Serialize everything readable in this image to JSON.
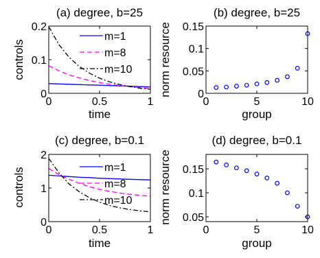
{
  "colors": {
    "m1": "#0000ff",
    "m8": "#ff00ff",
    "m10": "#000000",
    "markers": "#0000ff"
  },
  "chart_data": [
    {
      "id": "a",
      "type": "line",
      "title": "(a) degree, b=25",
      "xlabel": "time",
      "ylabel": "controls",
      "xlim": [
        0,
        1
      ],
      "ylim": [
        0,
        0.2
      ],
      "xticks": [
        0,
        0.5,
        1
      ],
      "xticklabels": [
        "0",
        "0.5",
        "1"
      ],
      "yticks": [
        0,
        0.1,
        0.2
      ],
      "yticklabels": [
        "0",
        "0.1",
        "0.2"
      ],
      "legend_position": "top-right",
      "x": [
        0,
        0.1,
        0.2,
        0.3,
        0.4,
        0.5,
        0.6,
        0.7,
        0.8,
        0.9,
        1.0
      ],
      "series": [
        {
          "name": "m=1",
          "style": "solid",
          "values": [
            0.029,
            0.028,
            0.027,
            0.026,
            0.025,
            0.024,
            0.023,
            0.022,
            0.021,
            0.02,
            0.019
          ]
        },
        {
          "name": "m=8",
          "style": "dashed",
          "values": [
            0.082,
            0.067,
            0.055,
            0.046,
            0.038,
            0.032,
            0.027,
            0.023,
            0.02,
            0.017,
            0.015
          ]
        },
        {
          "name": "m=10",
          "style": "dashdot",
          "values": [
            0.198,
            0.145,
            0.107,
            0.08,
            0.06,
            0.045,
            0.034,
            0.026,
            0.02,
            0.015,
            0.012
          ]
        }
      ]
    },
    {
      "id": "b",
      "type": "scatter",
      "title": "(b) degree, b=25",
      "xlabel": "group",
      "ylabel": "norm resource",
      "xlim": [
        0,
        10
      ],
      "ylim": [
        0,
        0.15
      ],
      "xticks": [
        0,
        5,
        10
      ],
      "xticklabels": [
        "0",
        "5",
        "10"
      ],
      "yticks": [
        0,
        0.05,
        0.1,
        0.15
      ],
      "yticklabels": [
        "0",
        "0.05",
        "0.1",
        "0.15"
      ],
      "x": [
        1,
        2,
        3,
        4,
        5,
        6,
        7,
        8,
        9,
        10
      ],
      "values": [
        0.013,
        0.014,
        0.016,
        0.018,
        0.021,
        0.024,
        0.029,
        0.037,
        0.056,
        0.133
      ]
    },
    {
      "id": "c",
      "type": "line",
      "title": "(c) degree, b=0.1",
      "xlabel": "time",
      "ylabel": "controls",
      "xlim": [
        0,
        1
      ],
      "ylim": [
        0,
        2
      ],
      "xticks": [
        0,
        0.5,
        1
      ],
      "xticklabels": [
        "0",
        "0.5",
        "1"
      ],
      "yticks": [
        0,
        1,
        2
      ],
      "yticklabels": [
        "0",
        "1",
        "2"
      ],
      "legend_position": "top-right",
      "x": [
        0,
        0.1,
        0.2,
        0.3,
        0.4,
        0.5,
        0.6,
        0.7,
        0.8,
        0.9,
        1.0
      ],
      "series": [
        {
          "name": "m=1",
          "style": "solid",
          "values": [
            1.38,
            1.36,
            1.34,
            1.32,
            1.31,
            1.29,
            1.28,
            1.27,
            1.26,
            1.25,
            1.24
          ]
        },
        {
          "name": "m=8",
          "style": "dashed",
          "values": [
            1.58,
            1.4,
            1.26,
            1.14,
            1.04,
            0.96,
            0.9,
            0.85,
            0.81,
            0.78,
            0.76
          ]
        },
        {
          "name": "m=10",
          "style": "dashdot",
          "values": [
            1.88,
            1.45,
            1.12,
            0.89,
            0.71,
            0.58,
            0.48,
            0.41,
            0.36,
            0.32,
            0.29
          ]
        }
      ]
    },
    {
      "id": "d",
      "type": "scatter",
      "title": "(d) degree, b=0.1",
      "xlabel": "group",
      "ylabel": "norm resource",
      "xlim": [
        0,
        10
      ],
      "ylim": [
        0.04,
        0.18
      ],
      "xticks": [
        0,
        5,
        10
      ],
      "xticklabels": [
        "0",
        "5",
        "10"
      ],
      "yticks": [
        0.05,
        0.1,
        0.15
      ],
      "yticklabels": [
        "0.05",
        "0.1",
        "0.15"
      ],
      "x": [
        1,
        2,
        3,
        4,
        5,
        6,
        7,
        8,
        9,
        10
      ],
      "values": [
        0.164,
        0.158,
        0.152,
        0.146,
        0.139,
        0.131,
        0.12,
        0.1,
        0.072,
        0.05
      ]
    }
  ]
}
